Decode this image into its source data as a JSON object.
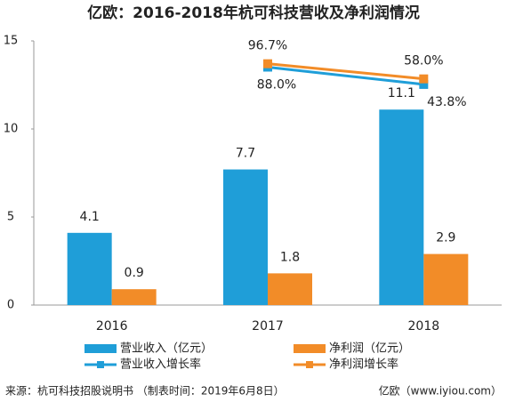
{
  "chart_data": {
    "type": "bar",
    "title": "亿欧：2016-2018年杭可科技营收及净利润情况",
    "categories": [
      "2016",
      "2017",
      "2018"
    ],
    "series": [
      {
        "name": "营业收入（亿元）",
        "type": "bar",
        "color": "#1f9ed8",
        "values": [
          4.1,
          7.7,
          11.1
        ]
      },
      {
        "name": "净利润（亿元）",
        "type": "bar",
        "color": "#f28c28",
        "values": [
          0.9,
          1.8,
          2.9
        ]
      },
      {
        "name": "营业收入增长率",
        "type": "line",
        "axis": "y2",
        "color": "#1f9ed8",
        "values": [
          null,
          88.0,
          43.8
        ],
        "value_labels": [
          null,
          "88.0%",
          "43.8%"
        ]
      },
      {
        "name": "净利润增长率",
        "type": "line",
        "axis": "y2",
        "color": "#f28c28",
        "values": [
          null,
          96.7,
          58.0
        ],
        "value_labels": [
          null,
          "96.7%",
          "58.0%"
        ]
      }
    ],
    "ylim": [
      0,
      15
    ],
    "yticks": [
      0,
      5,
      10,
      15
    ],
    "y2lim": [
      -520,
      155
    ],
    "grid": false,
    "legend": "bottom",
    "source": "来源：杭可科技招股说明书 （制表时间：2019年6月8日）",
    "brand": "亿欧（www.iyiou.com）"
  }
}
